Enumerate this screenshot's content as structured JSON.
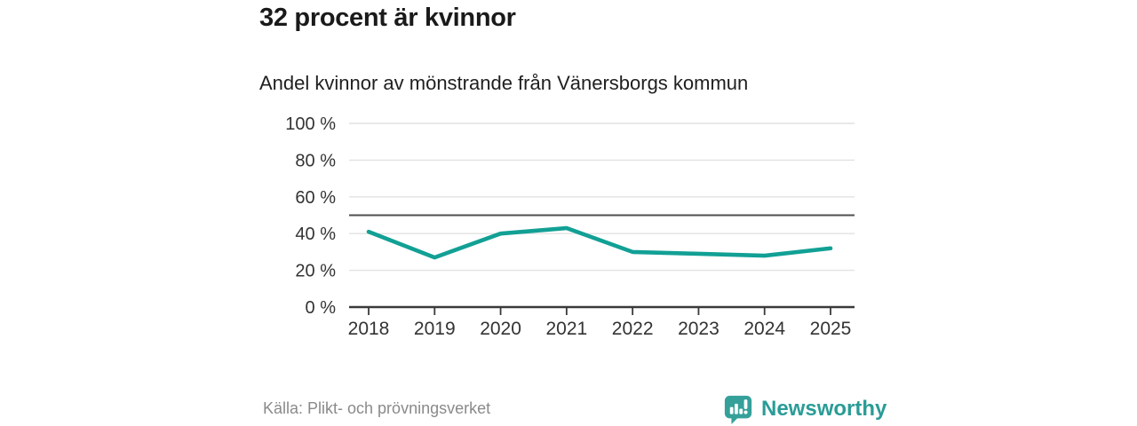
{
  "header": {
    "title": "32 procent är kvinnor",
    "subtitle": "Andel kvinnor av mönstrande från Vänersborgs kommun"
  },
  "footer": {
    "source": "Källa: Plikt- och prövningsverket",
    "brand_name": "Newsworthy",
    "brand_icon": "speech-bubble-bar-chart-exclamation"
  },
  "colors": {
    "line": "#12a095",
    "grid": "#e2e2e2",
    "reference_line": "#4f4f4f",
    "axis": "#3a3a3a",
    "tick_label": "#333333",
    "title_text": "#1a1a1a",
    "muted_text": "#8a8a8a",
    "brand_teal": "#2a9c96"
  },
  "chart_data": {
    "type": "line",
    "title": "32 procent är kvinnor",
    "subtitle": "Andel kvinnor av mönstrande från Vänersborgs kommun",
    "x": [
      "2018",
      "2019",
      "2020",
      "2021",
      "2022",
      "2023",
      "2024",
      "2025"
    ],
    "series": [
      {
        "name": "Andel kvinnor av mönstrande",
        "values": [
          41,
          27,
          40,
          43,
          30,
          29,
          28,
          32
        ],
        "unit": "%"
      }
    ],
    "ylim": [
      0,
      100
    ],
    "yticks": [
      0,
      20,
      40,
      60,
      80,
      100
    ],
    "ytick_suffix": " %",
    "reference_line": 50,
    "grid": true,
    "legend": false
  }
}
